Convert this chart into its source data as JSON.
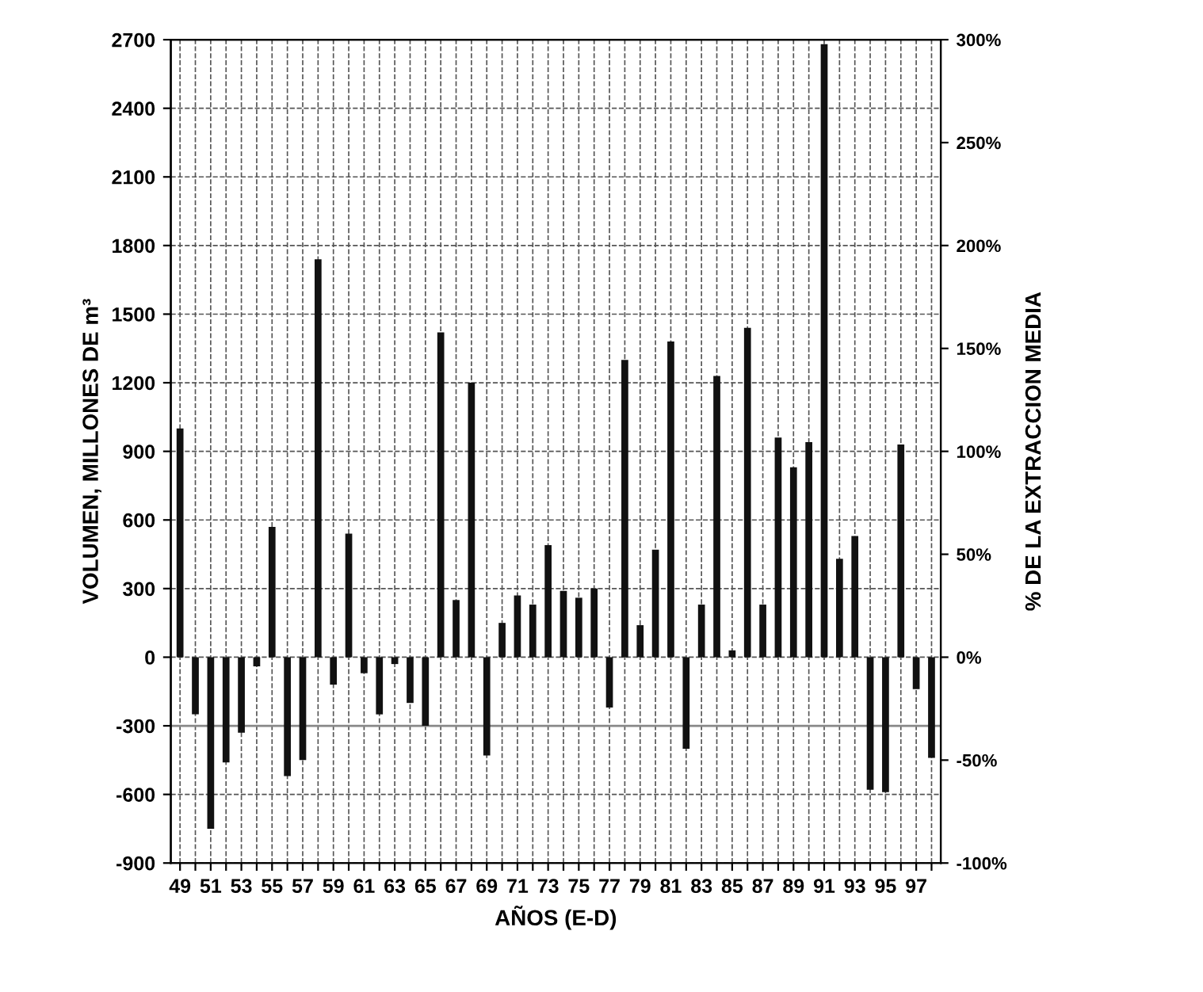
{
  "chart_data": {
    "type": "bar",
    "xlabel": "AÑOS (E-D)",
    "ylabel": "VOLUMEN, MILLONES DE m³",
    "y2label": "% DE LA EXTRACCION MEDIA",
    "categories": [
      "49",
      null,
      "51",
      null,
      "53",
      null,
      "55",
      null,
      "57",
      null,
      "59",
      null,
      "61",
      null,
      "63",
      null,
      "65",
      null,
      "67",
      null,
      "69",
      null,
      "71",
      null,
      "73",
      null,
      "75",
      null,
      "77",
      null,
      "79",
      null,
      "81",
      null,
      "83",
      null,
      "85",
      null,
      "87",
      null,
      "89",
      null,
      "91",
      null,
      "93",
      null,
      "95",
      null,
      "97",
      null
    ],
    "values": [
      1000,
      -250,
      -750,
      -460,
      -330,
      -40,
      570,
      -520,
      -450,
      1740,
      -120,
      540,
      -70,
      -250,
      -30,
      -200,
      -300,
      1420,
      250,
      1200,
      -430,
      150,
      270,
      230,
      490,
      290,
      260,
      300,
      -220,
      1300,
      140,
      470,
      1380,
      -400,
      230,
      1230,
      30,
      1440,
      230,
      960,
      830,
      940,
      2680,
      430,
      530,
      -580,
      -590,
      930,
      -140,
      -440
    ],
    "color": "#111111",
    "ylim": [
      -900,
      2700
    ],
    "yticks": [
      -900,
      -600,
      -300,
      0,
      300,
      600,
      900,
      1200,
      1500,
      1800,
      2100,
      2400,
      2700
    ],
    "y2lim": [
      -100,
      300
    ],
    "y2ticks": [
      {
        "value": -100,
        "label": "-100%"
      },
      {
        "value": -50,
        "label": "-50%"
      },
      {
        "value": 0,
        "label": "0%"
      },
      {
        "value": 50,
        "label": "50%"
      },
      {
        "value": 100,
        "label": "100%"
      },
      {
        "value": 150,
        "label": "150%"
      },
      {
        "value": 200,
        "label": "200%"
      },
      {
        "value": 250,
        "label": "250%"
      },
      {
        "value": 300,
        "label": "300%"
      }
    ],
    "ref_lines": [
      {
        "axis": "y",
        "value": -300,
        "color": "#888888",
        "line_style": "solid"
      }
    ],
    "grid": true,
    "legend": false
  }
}
